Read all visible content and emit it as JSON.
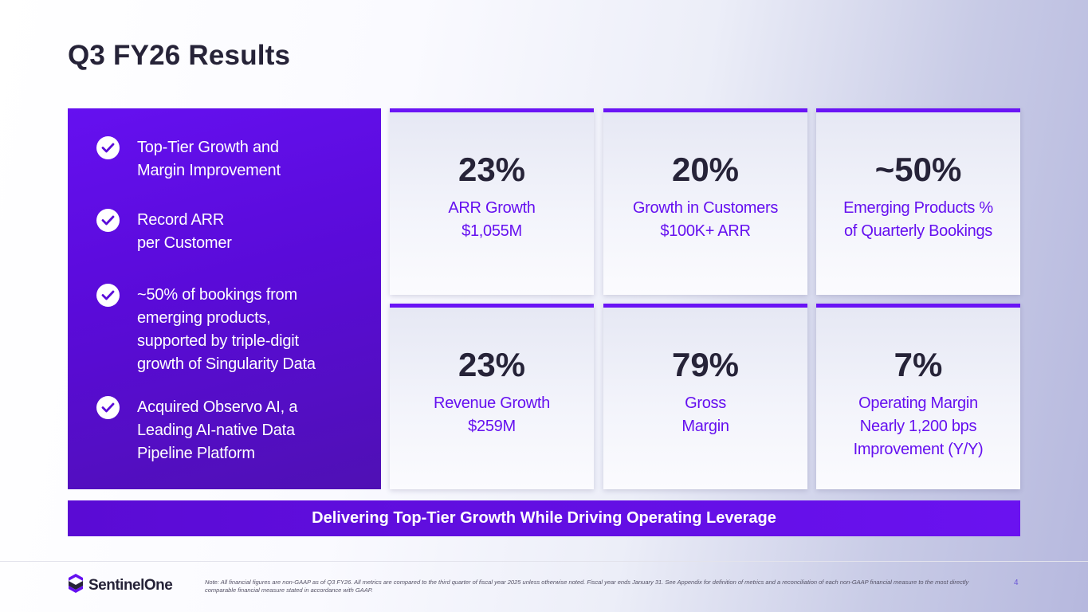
{
  "slide": {
    "title": "Q3 FY26 Results",
    "highlights": [
      {
        "text": "Top-Tier Growth and\nMargin Improvement"
      },
      {
        "text": "Record ARR\nper Customer"
      },
      {
        "text": "~50% of bookings from\nemerging products,\nsupported by triple-digit\ngrowth of Singularity Data"
      },
      {
        "text": "Acquired Observo AI, a\nLeading AI-native Data\nPipeline Platform"
      }
    ],
    "metrics": [
      {
        "value": "23%",
        "caption": "ARR Growth\n$1,055M"
      },
      {
        "value": "20%",
        "caption": "Growth in Customers\n$100K+ ARR"
      },
      {
        "value": "~50%",
        "caption": "Emerging Products %\nof Quarterly Bookings"
      },
      {
        "value": "23%",
        "caption": "Revenue Growth\n$259M"
      },
      {
        "value": "79%",
        "caption": "Gross\nMargin"
      },
      {
        "value": "7%",
        "caption": "Operating Margin\nNearly 1,200 bps\nImprovement (Y/Y)"
      }
    ],
    "banner": "Delivering Top-Tier Growth While Driving Operating Leverage"
  },
  "footer": {
    "logo_text": "SentinelOne",
    "logo_icon": "sentinelone-logo-icon",
    "note": "Note: All financial figures are non-GAAP as of Q3 FY26. All metrics are compared to the third quarter of fiscal year 2025 unless otherwise noted. Fiscal year ends January 31. See Appendix for definition of metrics and a reconciliation of each non-GAAP financial measure to the most directly comparable financial measure stated in accordance with GAAP.",
    "page_number": "4"
  },
  "colors": {
    "accent": "#6510f0",
    "dark_text": "#262338",
    "panel": "#5a0bd9"
  }
}
